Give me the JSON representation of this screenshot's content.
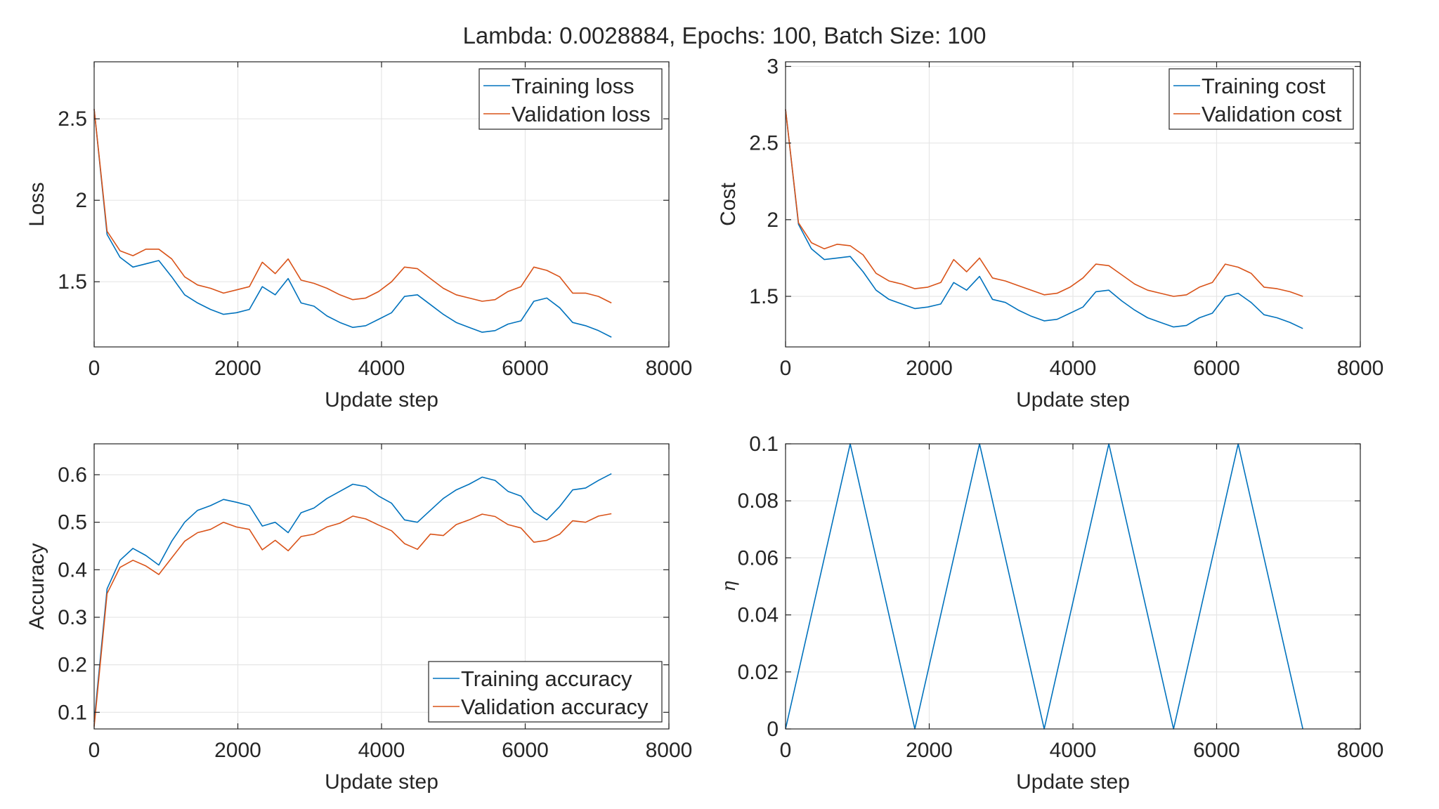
{
  "figure_title": "Lambda: 0.0028884, Epochs: 100, Batch Size: 100",
  "colors": {
    "training": "#0072BD",
    "validation": "#D95319",
    "grid": "#e6e6e6",
    "axes": "#262626"
  },
  "chart_data": [
    {
      "id": "loss",
      "type": "line",
      "xlabel": "Update step",
      "ylabel": "Loss",
      "xlim": [
        0,
        8000
      ],
      "ylim": [
        1.1,
        2.85
      ],
      "xticks": [
        0,
        2000,
        4000,
        6000,
        8000
      ],
      "yticks": [
        1.5,
        2,
        2.5
      ],
      "ytick_labels": [
        "1.5",
        "2",
        "2.5"
      ],
      "grid": true,
      "legend_position": "top-right",
      "series": [
        {
          "name": "Training loss",
          "color": "#0072BD",
          "x": [
            0,
            180,
            360,
            540,
            720,
            900,
            1080,
            1260,
            1440,
            1620,
            1800,
            1980,
            2160,
            2340,
            2520,
            2700,
            2880,
            3060,
            3240,
            3420,
            3600,
            3780,
            3960,
            4140,
            4320,
            4500,
            4680,
            4860,
            5040,
            5220,
            5400,
            5580,
            5760,
            5940,
            6120,
            6300,
            6480,
            6660,
            6840,
            7020,
            7200
          ],
          "y": [
            2.56,
            1.79,
            1.65,
            1.59,
            1.61,
            1.63,
            1.53,
            1.42,
            1.37,
            1.33,
            1.3,
            1.31,
            1.33,
            1.47,
            1.42,
            1.52,
            1.37,
            1.35,
            1.29,
            1.25,
            1.22,
            1.23,
            1.27,
            1.31,
            1.41,
            1.42,
            1.36,
            1.3,
            1.25,
            1.22,
            1.19,
            1.2,
            1.24,
            1.26,
            1.38,
            1.4,
            1.34,
            1.25,
            1.23,
            1.2,
            1.16
          ]
        },
        {
          "name": "Validation loss",
          "color": "#D95319",
          "x": [
            0,
            180,
            360,
            540,
            720,
            900,
            1080,
            1260,
            1440,
            1620,
            1800,
            1980,
            2160,
            2340,
            2520,
            2700,
            2880,
            3060,
            3240,
            3420,
            3600,
            3780,
            3960,
            4140,
            4320,
            4500,
            4680,
            4860,
            5040,
            5220,
            5400,
            5580,
            5760,
            5940,
            6120,
            6300,
            6480,
            6660,
            6840,
            7020,
            7200
          ],
          "y": [
            2.56,
            1.81,
            1.69,
            1.66,
            1.7,
            1.7,
            1.64,
            1.53,
            1.48,
            1.46,
            1.43,
            1.45,
            1.47,
            1.62,
            1.55,
            1.64,
            1.51,
            1.49,
            1.46,
            1.42,
            1.39,
            1.4,
            1.44,
            1.5,
            1.59,
            1.58,
            1.52,
            1.46,
            1.42,
            1.4,
            1.38,
            1.39,
            1.44,
            1.47,
            1.59,
            1.57,
            1.53,
            1.43,
            1.43,
            1.41,
            1.37
          ]
        }
      ]
    },
    {
      "id": "cost",
      "type": "line",
      "xlabel": "Update step",
      "ylabel": "Cost",
      "xlim": [
        0,
        8000
      ],
      "ylim": [
        1.17,
        3.03
      ],
      "xticks": [
        0,
        2000,
        4000,
        6000,
        8000
      ],
      "yticks": [
        1.5,
        2,
        2.5,
        3
      ],
      "ytick_labels": [
        "1.5",
        "2",
        "2.5",
        "3"
      ],
      "grid": true,
      "legend_position": "top-right",
      "series": [
        {
          "name": "Training cost",
          "color": "#0072BD",
          "x": [
            0,
            180,
            360,
            540,
            720,
            900,
            1080,
            1260,
            1440,
            1620,
            1800,
            1980,
            2160,
            2340,
            2520,
            2700,
            2880,
            3060,
            3240,
            3420,
            3600,
            3780,
            3960,
            4140,
            4320,
            4500,
            4680,
            4860,
            5040,
            5220,
            5400,
            5580,
            5760,
            5940,
            6120,
            6300,
            6480,
            6660,
            6840,
            7020,
            7200
          ],
          "y": [
            2.72,
            1.97,
            1.81,
            1.74,
            1.75,
            1.76,
            1.66,
            1.54,
            1.48,
            1.45,
            1.42,
            1.43,
            1.45,
            1.59,
            1.54,
            1.63,
            1.48,
            1.46,
            1.41,
            1.37,
            1.34,
            1.35,
            1.39,
            1.43,
            1.53,
            1.54,
            1.47,
            1.41,
            1.36,
            1.33,
            1.3,
            1.31,
            1.36,
            1.39,
            1.5,
            1.52,
            1.46,
            1.38,
            1.36,
            1.33,
            1.29
          ]
        },
        {
          "name": "Validation cost",
          "color": "#D95319",
          "x": [
            0,
            180,
            360,
            540,
            720,
            900,
            1080,
            1260,
            1440,
            1620,
            1800,
            1980,
            2160,
            2340,
            2520,
            2700,
            2880,
            3060,
            3240,
            3420,
            3600,
            3780,
            3960,
            4140,
            4320,
            4500,
            4680,
            4860,
            5040,
            5220,
            5400,
            5580,
            5760,
            5940,
            6120,
            6300,
            6480,
            6660,
            6840,
            7020,
            7200
          ],
          "y": [
            2.72,
            1.98,
            1.85,
            1.81,
            1.84,
            1.83,
            1.77,
            1.65,
            1.6,
            1.58,
            1.55,
            1.56,
            1.59,
            1.74,
            1.66,
            1.75,
            1.62,
            1.6,
            1.57,
            1.54,
            1.51,
            1.52,
            1.56,
            1.62,
            1.71,
            1.7,
            1.64,
            1.58,
            1.54,
            1.52,
            1.5,
            1.51,
            1.56,
            1.59,
            1.71,
            1.69,
            1.65,
            1.56,
            1.55,
            1.53,
            1.5
          ]
        }
      ]
    },
    {
      "id": "accuracy",
      "type": "line",
      "xlabel": "Update step",
      "ylabel": "Accuracy",
      "xlim": [
        0,
        8000
      ],
      "ylim": [
        0.065,
        0.665
      ],
      "xticks": [
        0,
        2000,
        4000,
        6000,
        8000
      ],
      "yticks": [
        0.1,
        0.2,
        0.3,
        0.4,
        0.5,
        0.6
      ],
      "ytick_labels": [
        "0.1",
        "0.2",
        "0.3",
        "0.4",
        "0.5",
        "0.6"
      ],
      "grid": true,
      "legend_position": "bottom-right",
      "series": [
        {
          "name": "Training accuracy",
          "color": "#0072BD",
          "x": [
            0,
            180,
            360,
            540,
            720,
            900,
            1080,
            1260,
            1440,
            1620,
            1800,
            1980,
            2160,
            2340,
            2520,
            2700,
            2880,
            3060,
            3240,
            3420,
            3600,
            3780,
            3960,
            4140,
            4320,
            4500,
            4680,
            4860,
            5040,
            5220,
            5400,
            5580,
            5760,
            5940,
            6120,
            6300,
            6480,
            6660,
            6840,
            7020,
            7200
          ],
          "y": [
            0.08,
            0.36,
            0.42,
            0.445,
            0.43,
            0.41,
            0.46,
            0.5,
            0.525,
            0.535,
            0.548,
            0.542,
            0.535,
            0.492,
            0.5,
            0.478,
            0.52,
            0.53,
            0.55,
            0.565,
            0.58,
            0.575,
            0.555,
            0.54,
            0.505,
            0.5,
            0.525,
            0.55,
            0.568,
            0.58,
            0.595,
            0.588,
            0.565,
            0.555,
            0.522,
            0.505,
            0.533,
            0.568,
            0.572,
            0.588,
            0.602
          ]
        },
        {
          "name": "Validation accuracy",
          "color": "#D95319",
          "x": [
            0,
            180,
            360,
            540,
            720,
            900,
            1080,
            1260,
            1440,
            1620,
            1800,
            1980,
            2160,
            2340,
            2520,
            2700,
            2880,
            3060,
            3240,
            3420,
            3600,
            3780,
            3960,
            4140,
            4320,
            4500,
            4680,
            4860,
            5040,
            5220,
            5400,
            5580,
            5760,
            5940,
            6120,
            6300,
            6480,
            6660,
            6840,
            7020,
            7200
          ],
          "y": [
            0.07,
            0.35,
            0.405,
            0.42,
            0.408,
            0.39,
            0.425,
            0.46,
            0.478,
            0.485,
            0.5,
            0.49,
            0.485,
            0.442,
            0.462,
            0.44,
            0.47,
            0.475,
            0.49,
            0.498,
            0.513,
            0.507,
            0.494,
            0.482,
            0.455,
            0.443,
            0.475,
            0.472,
            0.495,
            0.505,
            0.517,
            0.512,
            0.495,
            0.488,
            0.458,
            0.462,
            0.475,
            0.503,
            0.5,
            0.513,
            0.518
          ]
        }
      ]
    },
    {
      "id": "eta",
      "type": "line",
      "xlabel": "Update step",
      "ylabel": "η",
      "xlim": [
        0,
        8000
      ],
      "ylim": [
        0,
        0.1
      ],
      "xticks": [
        0,
        2000,
        4000,
        6000,
        8000
      ],
      "yticks": [
        0,
        0.02,
        0.04,
        0.06,
        0.08,
        0.1
      ],
      "ytick_labels": [
        "0",
        "0.02",
        "0.04",
        "0.06",
        "0.08",
        "0.1"
      ],
      "grid": true,
      "legend_position": "none",
      "series": [
        {
          "color": "#0072BD",
          "x": [
            0,
            900,
            1800,
            2700,
            3600,
            4500,
            5400,
            6300,
            7200
          ],
          "y": [
            0,
            0.1,
            0,
            0.1,
            0,
            0.1,
            0,
            0.1,
            0
          ]
        }
      ]
    }
  ]
}
